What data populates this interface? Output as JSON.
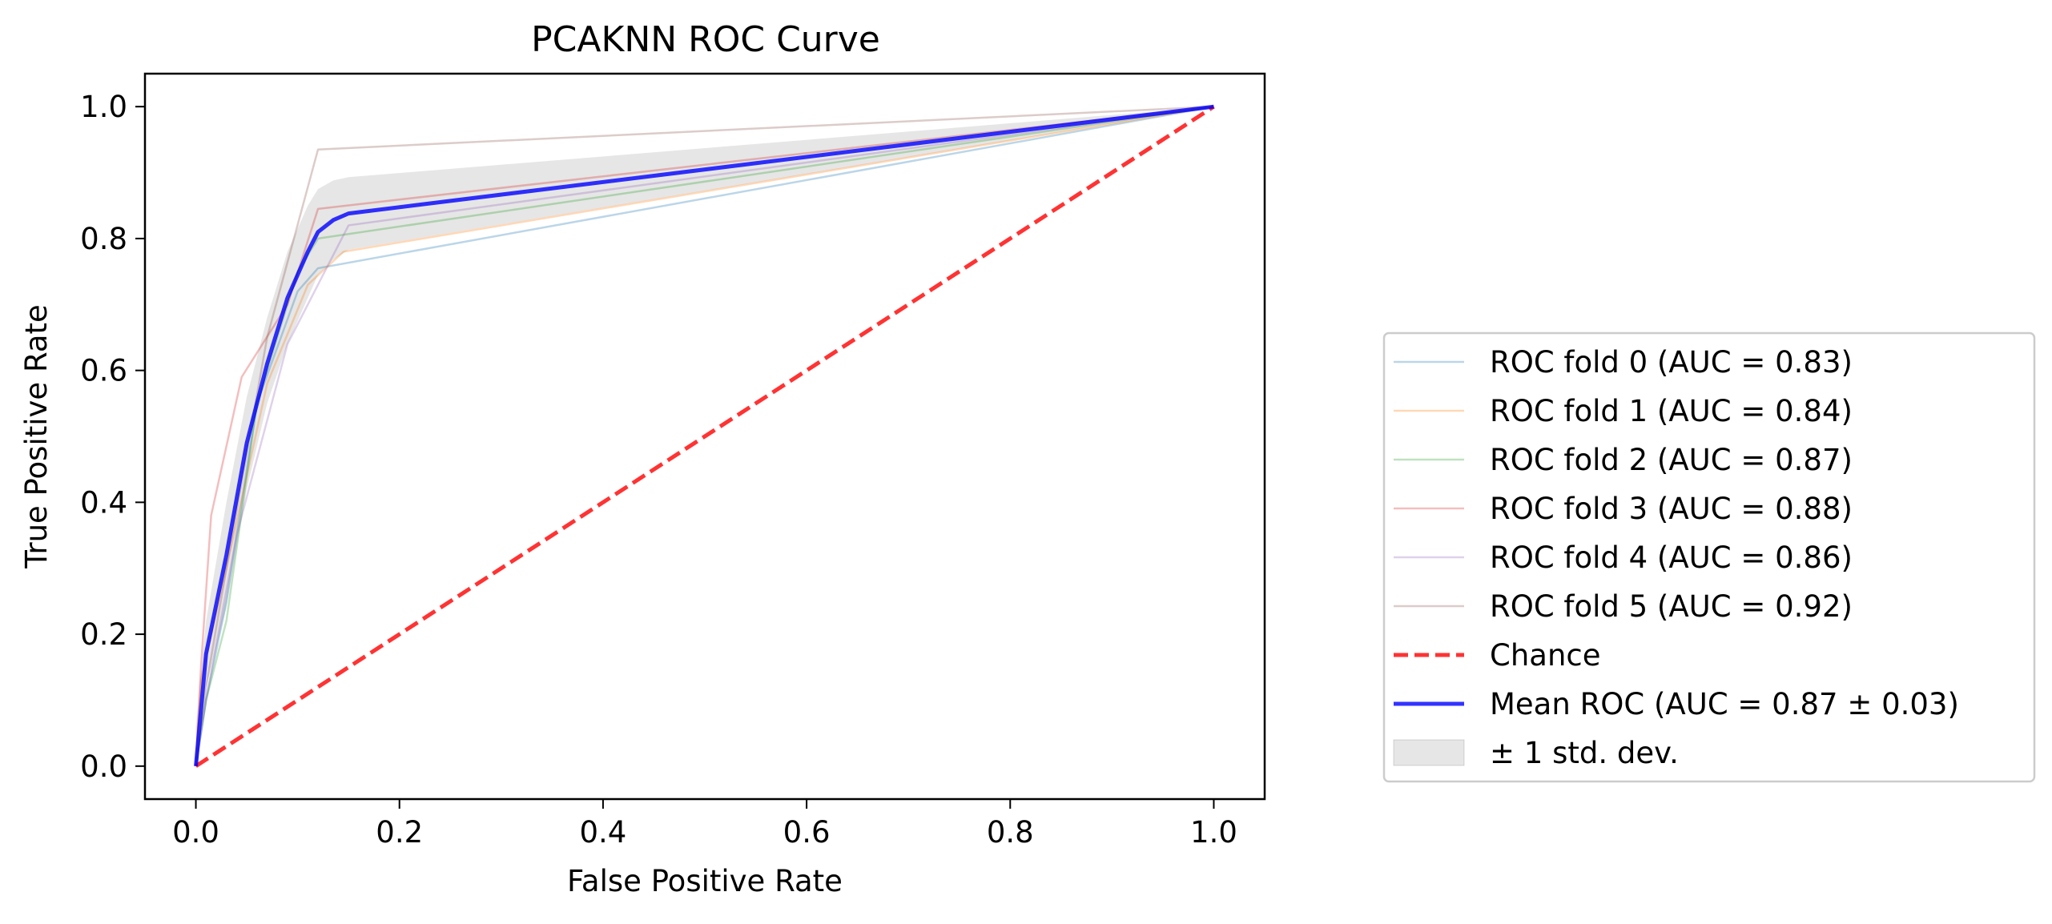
{
  "chart_data": {
    "type": "line",
    "title": "PCAKNN ROC Curve",
    "xlabel": "False Positive Rate",
    "ylabel": "True Positive Rate",
    "xlim": [
      -0.05,
      1.05
    ],
    "ylim": [
      -0.05,
      1.05
    ],
    "xticks": [
      0.0,
      0.2,
      0.4,
      0.6,
      0.8,
      1.0
    ],
    "yticks": [
      0.0,
      0.2,
      0.4,
      0.6,
      0.8,
      1.0
    ],
    "xtick_labels": [
      "0.0",
      "0.2",
      "0.4",
      "0.6",
      "0.8",
      "1.0"
    ],
    "ytick_labels": [
      "0.0",
      "0.2",
      "0.4",
      "0.6",
      "0.8",
      "1.0"
    ],
    "grid": false,
    "legend_position": "right",
    "series": [
      {
        "name": "ROC fold 0 (AUC = 0.83)",
        "color": "#1f77b4",
        "opacity": 0.3,
        "width": 1,
        "x": [
          0.0,
          0.01,
          0.03,
          0.06,
          0.1,
          0.12,
          1.0
        ],
        "y": [
          0.0,
          0.1,
          0.25,
          0.55,
          0.72,
          0.755,
          1.0
        ]
      },
      {
        "name": "ROC fold 1 (AUC = 0.84)",
        "color": "#ff7f0e",
        "opacity": 0.3,
        "width": 1,
        "x": [
          0.0,
          0.005,
          0.03,
          0.07,
          0.11,
          0.145,
          1.0
        ],
        "y": [
          0.0,
          0.13,
          0.3,
          0.58,
          0.73,
          0.78,
          1.0
        ]
      },
      {
        "name": "ROC fold 2 (AUC = 0.87)",
        "color": "#2ca02c",
        "opacity": 0.3,
        "width": 1,
        "x": [
          0.0,
          0.01,
          0.03,
          0.06,
          0.1,
          0.12,
          1.0
        ],
        "y": [
          0.0,
          0.1,
          0.22,
          0.55,
          0.75,
          0.8,
          1.0
        ]
      },
      {
        "name": "ROC fold 3 (AUC = 0.88)",
        "color": "#d62728",
        "opacity": 0.3,
        "width": 1,
        "x": [
          0.0,
          0.005,
          0.015,
          0.045,
          0.09,
          0.12,
          1.0
        ],
        "y": [
          0.0,
          0.15,
          0.38,
          0.59,
          0.7,
          0.845,
          1.0
        ]
      },
      {
        "name": "ROC fold 4 (AUC = 0.86)",
        "color": "#9467bd",
        "opacity": 0.3,
        "width": 1,
        "x": [
          0.0,
          0.01,
          0.04,
          0.09,
          0.13,
          0.15,
          1.0
        ],
        "y": [
          0.0,
          0.1,
          0.35,
          0.64,
          0.76,
          0.82,
          1.0
        ]
      },
      {
        "name": "ROC fold 5 (AUC = 0.92)",
        "color": "#8c564b",
        "opacity": 0.3,
        "width": 1,
        "x": [
          0.0,
          0.01,
          0.03,
          0.07,
          0.12,
          1.0
        ],
        "y": [
          0.0,
          0.12,
          0.3,
          0.65,
          0.935,
          1.0
        ]
      },
      {
        "name": "Chance",
        "color": "#ff0000",
        "opacity": 0.8,
        "width": 2,
        "dash": true,
        "x": [
          0.0,
          1.0
        ],
        "y": [
          0.0,
          1.0
        ]
      },
      {
        "name": "Mean ROC (AUC = 0.87 ± 0.03)",
        "color": "#0000ff",
        "opacity": 0.8,
        "width": 2,
        "x": [
          0.0,
          0.01,
          0.03,
          0.05,
          0.07,
          0.09,
          0.11,
          0.12,
          0.135,
          0.15,
          1.0
        ],
        "y": [
          0.0,
          0.17,
          0.32,
          0.49,
          0.61,
          0.71,
          0.78,
          0.81,
          0.828,
          0.838,
          1.0
        ]
      }
    ],
    "std_band": {
      "name": "± 1 std. dev.",
      "color": "#808080",
      "opacity": 0.2,
      "x": [
        0.0,
        0.01,
        0.03,
        0.05,
        0.07,
        0.09,
        0.11,
        0.12,
        0.135,
        0.15,
        1.0
      ],
      "upper": [
        0.06,
        0.22,
        0.4,
        0.56,
        0.68,
        0.78,
        0.85,
        0.875,
        0.888,
        0.893,
        1.0
      ],
      "lower": [
        0.0,
        0.12,
        0.24,
        0.42,
        0.55,
        0.64,
        0.71,
        0.745,
        0.768,
        0.783,
        1.0
      ]
    }
  }
}
